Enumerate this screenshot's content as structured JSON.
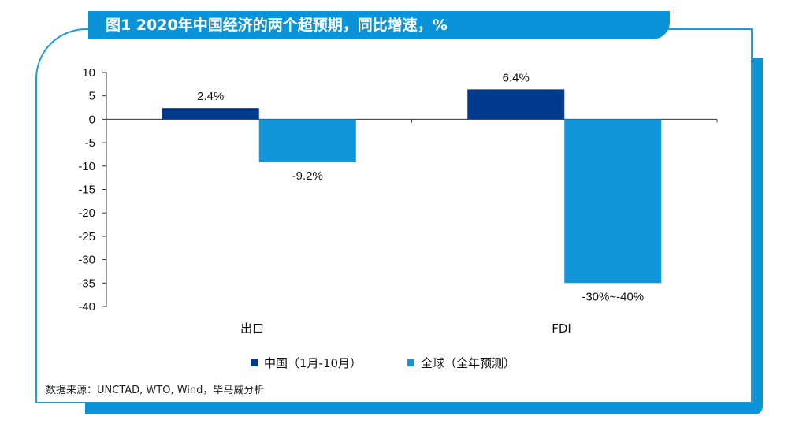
{
  "header": {
    "title": "图1  2020年中国经济的两个超预期，同比增速，%"
  },
  "chart_data": {
    "type": "bar",
    "categories": [
      "出口",
      "FDI"
    ],
    "series": [
      {
        "name": "中国（1月-10月）",
        "values": [
          2.4,
          6.4
        ],
        "labels": [
          "2.4%",
          "6.4%"
        ],
        "color": "#003a8c"
      },
      {
        "name": "全球（全年预测）",
        "values": [
          -9.2,
          -35
        ],
        "labels": [
          "-9.2%",
          "-30%~-40%"
        ],
        "color": "#1296db"
      }
    ],
    "yticks": [
      10,
      5,
      0,
      -5,
      -10,
      -15,
      -20,
      -25,
      -30,
      -35,
      -40
    ],
    "ylim": [
      -40,
      10
    ],
    "grid": false,
    "legend_position": "bottom"
  },
  "footer": {
    "source": "数据来源：UNCTAD, WTO, Wind，毕马威分析"
  }
}
